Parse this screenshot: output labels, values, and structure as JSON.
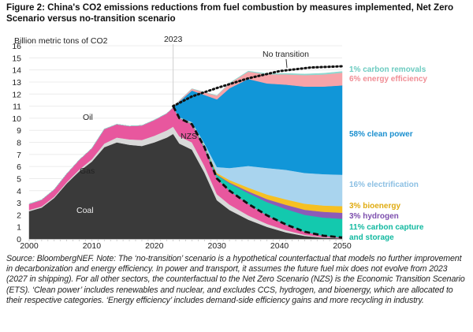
{
  "title": "Figure 2: China's CO2 emissions reductions from fuel combustion by measures implemented, Net Zero Scenario versus no-transition scenario",
  "source_note": "Source: BloombergNEF. Note: The ‘no-transition’ scenario is a hypothetical counterfactual that models no further improvement in decarbonization and energy efficiency. In power and transport, it assumes the future fuel mix does not evolve from 2023 (2027 in shipping). For all other sectors, the counterfactual to the Net Zero Scenario (NZS) is the Economic Transition Scenario (ETS). ‘Clean power’ includes renewables and nuclear, and excludes CCS, hydrogen, and bioenergy, which are allocated to their respective categories. ‘Energy efficiency’ includes demand-side efficiency gains and more recycling in industry.",
  "chart_data": {
    "type": "area",
    "title": "Figure 2: China's CO2 emissions reductions from fuel combustion by measures implemented, Net Zero Scenario versus no-transition scenario",
    "ylabel": "Billion metric tons of CO2",
    "xlabel": "",
    "xlim": [
      2000,
      2050
    ],
    "ylim": [
      0,
      16
    ],
    "x_ticks": [
      "2000",
      "2010",
      "2020",
      "2030",
      "2040",
      "2050"
    ],
    "y_ticks": [
      "0",
      "1",
      "2",
      "3",
      "4",
      "5",
      "6",
      "7",
      "8",
      "9",
      "10",
      "11",
      "12",
      "13",
      "14",
      "15",
      "16"
    ],
    "grid": true,
    "marker_year": {
      "x": 2023,
      "label": "2023"
    },
    "x": [
      2000,
      2002,
      2004,
      2006,
      2008,
      2010,
      2012,
      2014,
      2016,
      2018,
      2020,
      2022,
      2023,
      2024,
      2026,
      2028,
      2030,
      2032,
      2035,
      2038,
      2041,
      2044,
      2047,
      2050
    ],
    "historic_and_nzs_fuels": [
      {
        "name": "Coal",
        "label": "Coal",
        "color": "#3a3a3a",
        "values": [
          2.3,
          2.6,
          3.4,
          4.6,
          5.6,
          6.4,
          7.6,
          8.0,
          7.8,
          7.7,
          8.0,
          8.4,
          8.7,
          7.9,
          7.4,
          5.5,
          3.2,
          2.4,
          1.6,
          1.0,
          0.55,
          0.25,
          0.1,
          0.05
        ]
      },
      {
        "name": "Gas",
        "label": "Gas",
        "color": "#d9d9d9",
        "values": [
          0.1,
          0.1,
          0.1,
          0.1,
          0.15,
          0.2,
          0.3,
          0.4,
          0.45,
          0.5,
          0.55,
          0.6,
          0.6,
          0.6,
          0.6,
          0.55,
          0.5,
          0.45,
          0.35,
          0.25,
          0.18,
          0.1,
          0.05,
          0.02
        ]
      },
      {
        "name": "Oil",
        "label": "Oil",
        "color": "#e8579e",
        "values": [
          0.5,
          0.55,
          0.6,
          0.7,
          0.8,
          0.9,
          1.2,
          1.1,
          1.1,
          1.2,
          1.3,
          1.4,
          1.6,
          1.5,
          1.5,
          1.5,
          1.3,
          1.15,
          0.95,
          0.7,
          0.45,
          0.25,
          0.12,
          0.05
        ]
      }
    ],
    "reduction_wedges": [
      {
        "name": "Carbon capture and storage",
        "label": "11% carbon capture and storage",
        "share_pct": 11,
        "color": "#13c9ae",
        "values": [
          0,
          0,
          0,
          0,
          0,
          0,
          0,
          0,
          0,
          0,
          0,
          0,
          0,
          0.02,
          0.05,
          0.1,
          0.3,
          0.6,
          0.9,
          1.1,
          1.3,
          1.4,
          1.5,
          1.55
        ]
      },
      {
        "name": "Hydrogen",
        "label": "3% hydrogen",
        "share_pct": 3,
        "color": "#8c5bb8",
        "values": [
          0,
          0,
          0,
          0,
          0,
          0,
          0,
          0,
          0,
          0,
          0,
          0,
          0,
          0,
          0.01,
          0.02,
          0.04,
          0.08,
          0.15,
          0.25,
          0.35,
          0.42,
          0.48,
          0.5
        ]
      },
      {
        "name": "Bioenergy",
        "label": "3% bioenergy",
        "share_pct": 3,
        "color": "#f6c022",
        "values": [
          0,
          0,
          0,
          0,
          0,
          0,
          0,
          0,
          0,
          0,
          0,
          0,
          0,
          0.01,
          0.03,
          0.06,
          0.12,
          0.2,
          0.3,
          0.38,
          0.45,
          0.5,
          0.52,
          0.55
        ]
      },
      {
        "name": "Electrification",
        "label": "16% electrification",
        "share_pct": 16,
        "color": "#a9d4ee",
        "values": [
          0,
          0,
          0,
          0,
          0,
          0,
          0,
          0,
          0,
          0,
          0,
          0,
          0,
          0.05,
          0.1,
          0.2,
          0.5,
          1.0,
          1.8,
          2.2,
          2.45,
          2.55,
          2.6,
          2.6
        ]
      },
      {
        "name": "Clean power",
        "label": "58% clean power",
        "share_pct": 58,
        "color": "#1196d8",
        "values": [
          0,
          0,
          0,
          0,
          0,
          0,
          0,
          0,
          0,
          0,
          0,
          0,
          0,
          1.3,
          2.6,
          4.0,
          5.6,
          6.6,
          7.2,
          7.0,
          7.05,
          7.15,
          7.25,
          7.4
        ]
      },
      {
        "name": "Energy efficiency",
        "label": "6% energy efficiency",
        "share_pct": 6,
        "color": "#f7a3a8",
        "values": [
          0,
          0,
          0,
          0,
          0,
          0,
          0,
          0,
          0,
          0,
          0,
          0,
          0,
          0.08,
          0.15,
          0.22,
          0.3,
          0.4,
          0.6,
          0.75,
          0.85,
          0.95,
          1.0,
          1.05
        ]
      },
      {
        "name": "Carbon removals",
        "label": "1% carbon removals",
        "share_pct": 1,
        "color": "#8ed9d0",
        "values": [
          0,
          0,
          0,
          0,
          0,
          0,
          0,
          0,
          0,
          0,
          0,
          0,
          0,
          0,
          0,
          0.01,
          0.02,
          0.03,
          0.05,
          0.06,
          0.08,
          0.09,
          0.1,
          0.1
        ]
      }
    ],
    "no_transition_line": {
      "label": "No transition",
      "style": "dotted",
      "x": [
        2023,
        2026,
        2030,
        2035,
        2040,
        2045,
        2050
      ],
      "values": [
        11.0,
        11.8,
        12.5,
        13.3,
        13.9,
        14.2,
        14.3
      ]
    },
    "nzs_line": {
      "label": "NZS",
      "style": "dashed",
      "x": [
        2023,
        2024,
        2026,
        2028,
        2030,
        2032,
        2035,
        2038,
        2041,
        2044,
        2047,
        2050
      ],
      "values": [
        11.0,
        10.0,
        9.5,
        7.6,
        5.0,
        4.0,
        2.9,
        1.95,
        1.2,
        0.6,
        0.27,
        0.12
      ]
    }
  }
}
